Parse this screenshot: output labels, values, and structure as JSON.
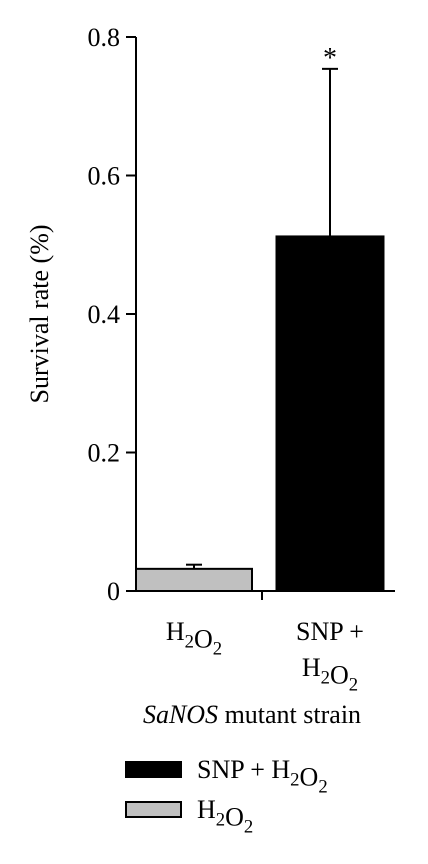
{
  "chart_data": {
    "type": "bar",
    "categories": [
      "H2O2",
      "SNP + H2O2"
    ],
    "category_label_lines": [
      [
        [
          {
            "t": "H"
          },
          {
            "t": "2",
            "sub": true
          },
          {
            "t": "O"
          },
          {
            "t": "2",
            "sub": true
          }
        ]
      ],
      [
        [
          {
            "t": "SNP +"
          }
        ],
        [
          {
            "t": "H"
          },
          {
            "t": "2",
            "sub": true
          },
          {
            "t": "O"
          },
          {
            "t": "2",
            "sub": true
          }
        ]
      ]
    ],
    "values": [
      0.032,
      0.512
    ],
    "error_upper": [
      0.006,
      0.242
    ],
    "significance": [
      "",
      "*"
    ],
    "bar_colors": [
      "#c0c0c0",
      "#000000"
    ],
    "ylabel": "Survival rate (%)",
    "xlabel_italic": "SaNOS",
    "xlabel_rest": " mutant strain",
    "ylim": [
      0,
      0.8
    ],
    "yticks": [
      0,
      0.2,
      0.4,
      0.6,
      0.8
    ],
    "ytick_labels": [
      "0",
      "0.2",
      "0.4",
      "0.6",
      "0.8"
    ],
    "legend": [
      {
        "label_parts": [
          {
            "t": "SNP + H"
          },
          {
            "t": "2",
            "sub": true
          },
          {
            "t": "O"
          },
          {
            "t": "2",
            "sub": true
          }
        ],
        "color": "#000000"
      },
      {
        "label_parts": [
          {
            "t": "H"
          },
          {
            "t": "2",
            "sub": true
          },
          {
            "t": "O"
          },
          {
            "t": "2",
            "sub": true
          }
        ],
        "color": "#c0c0c0"
      }
    ],
    "legend_position": "bottom-left",
    "grid": false
  }
}
